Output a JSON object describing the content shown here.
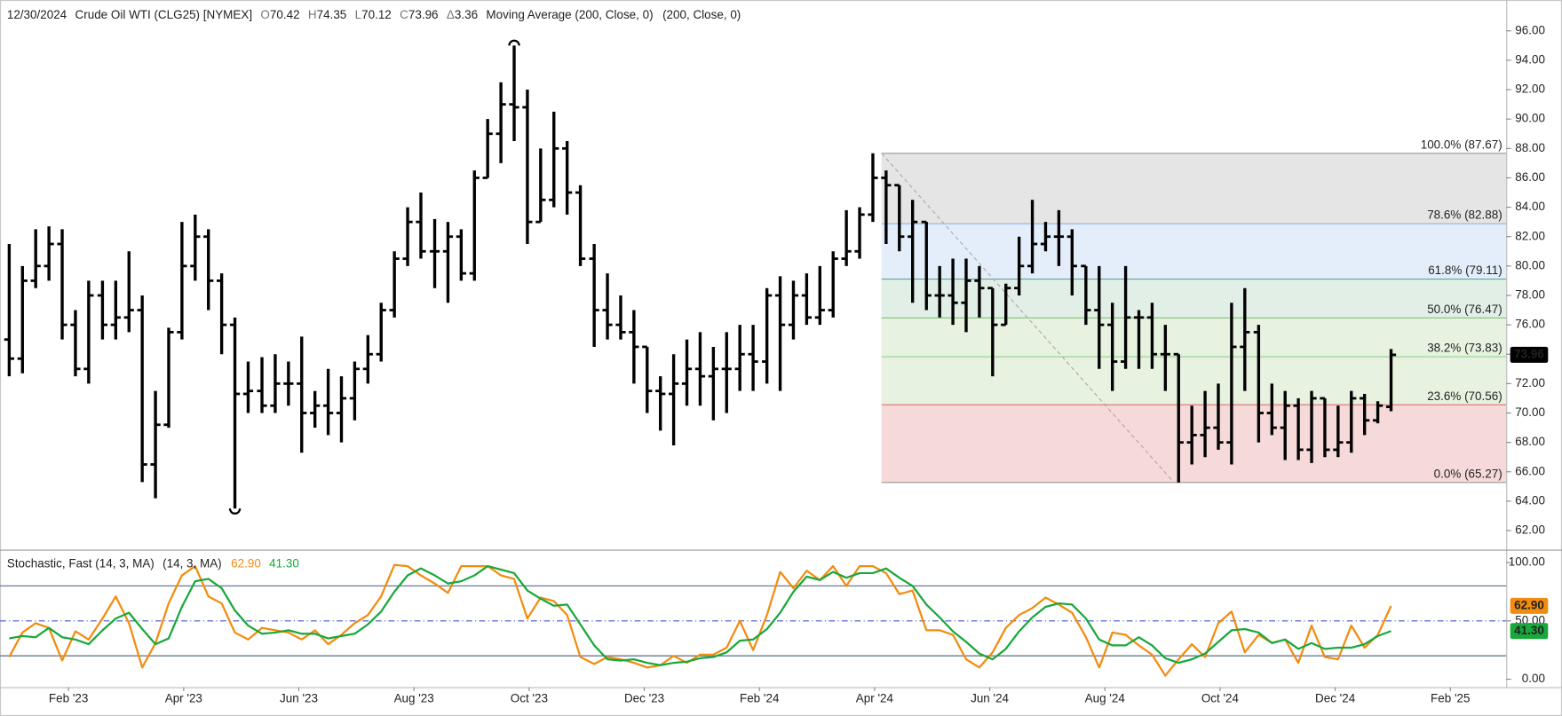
{
  "chart_data": {
    "type": "ohlc",
    "date": "12/30/2024",
    "title": "Crude Oil WTI (CLG25) [NYMEX]",
    "legend_letters": {
      "open": "O",
      "high": "H",
      "low": "L",
      "close": "C",
      "change": "Δ"
    },
    "change": 3.36,
    "study": "Moving Average (200, Close, 0)",
    "study_params": "(200, Close, 0)",
    "color": "#000000",
    "x": [
      -0.03,
      0.2,
      0.43,
      0.66,
      0.89,
      1.12,
      1.35,
      1.59,
      1.82,
      2.05,
      2.28,
      2.51,
      2.74,
      2.97,
      3.2,
      3.43,
      3.66,
      3.89,
      4.12,
      4.36,
      4.59,
      4.82,
      5.05,
      5.28,
      5.51,
      5.74,
      5.97,
      6.2,
      6.43,
      6.66,
      6.89,
      7.12,
      7.36,
      7.59,
      7.82,
      8.05,
      8.28,
      8.51,
      8.74,
      8.97,
      9.2,
      9.43,
      9.66,
      9.89,
      10.13,
      10.36,
      10.59,
      10.82,
      11.05,
      11.28,
      11.51,
      11.74,
      11.97,
      12.2,
      12.43,
      12.66,
      12.89,
      13.13,
      13.36,
      13.59,
      13.82,
      14.05,
      14.28,
      14.51,
      14.74,
      14.97,
      15.2,
      15.43,
      15.66,
      15.9,
      16.13,
      16.36,
      16.59,
      16.82,
      17.05,
      17.28,
      17.51,
      17.74,
      17.97,
      18.2,
      18.43,
      18.67,
      18.9,
      19.13,
      19.36,
      19.59,
      19.82,
      20.05,
      20.28,
      20.51,
      20.74,
      20.97,
      21.2,
      21.43,
      21.67,
      21.9,
      22.13,
      22.36,
      22.59,
      22.82,
      23.05,
      23.28,
      23.51,
      23.74,
      23.97
    ],
    "open": [
      75,
      73.7,
      79,
      80,
      81.5,
      76,
      73,
      78,
      76,
      76.5,
      77,
      66.5,
      69.2,
      75.5,
      80,
      82,
      79,
      76,
      71.3,
      71.5,
      70.5,
      72,
      72,
      70,
      70.5,
      70,
      71,
      73,
      74,
      77,
      80.5,
      83,
      81,
      81,
      82,
      79.5,
      86,
      89,
      91,
      90.8,
      83,
      84.5,
      88,
      85,
      80.5,
      77,
      76,
      75.5,
      74.5,
      71.5,
      71.3,
      72,
      73,
      72.5,
      73,
      73,
      74,
      73.5,
      78,
      76,
      78,
      76.5,
      77,
      80.5,
      81,
      83.5,
      86,
      85.5,
      82,
      83,
      78,
      78,
      77.5,
      79,
      78.5,
      76,
      78.5,
      80,
      81.5,
      82,
      82,
      80,
      77,
      76,
      73.5,
      76.5,
      76.5,
      74,
      74,
      68,
      68.5,
      69,
      68,
      74.5,
      75.5,
      70,
      69,
      70.5,
      67.5,
      71,
      67.5,
      68,
      71,
      69.5,
      70.42
    ],
    "high": [
      81.5,
      80,
      82.5,
      82.7,
      82.5,
      77,
      79,
      79,
      79,
      81,
      78,
      71.5,
      75.8,
      83,
      83.5,
      82.5,
      79.5,
      76.5,
      73.5,
      73.8,
      74,
      73.5,
      75.2,
      71.5,
      73,
      72.5,
      73.5,
      75.3,
      77.5,
      81,
      84,
      85,
      83.2,
      83,
      82.5,
      86.5,
      90,
      92.5,
      95,
      92,
      88,
      90.5,
      88.5,
      85.5,
      81.5,
      79.5,
      78,
      77,
      74.5,
      72.5,
      74,
      75,
      75.5,
      74.5,
      75.5,
      76,
      76,
      78.5,
      79.3,
      79,
      79.5,
      80,
      81,
      83.8,
      84,
      87.67,
      86.5,
      85.5,
      84.5,
      83,
      80,
      80.5,
      80.5,
      80,
      78.5,
      78.8,
      82,
      84.5,
      83,
      83.8,
      82.5,
      80,
      80,
      77.5,
      80,
      77,
      77.5,
      76,
      74,
      70.5,
      71.5,
      72,
      77.5,
      78.5,
      76,
      72,
      71.5,
      71,
      71.5,
      71,
      70.5,
      71.5,
      71.3,
      70.8,
      74.35
    ],
    "low": [
      72.5,
      72.7,
      78.5,
      79,
      75,
      72.5,
      72,
      75,
      75,
      75.5,
      65.3,
      64.2,
      69,
      75,
      79,
      77,
      74,
      63.5,
      70,
      70,
      70,
      70.5,
      67.3,
      69,
      68.5,
      68,
      69.5,
      72,
      73.5,
      76.5,
      80,
      80.5,
      78.5,
      77.5,
      79,
      79,
      86,
      87,
      88.5,
      81.5,
      83,
      84,
      83.5,
      80,
      74.5,
      75,
      75,
      72,
      70,
      68.8,
      67.8,
      70.5,
      70.5,
      69.5,
      70,
      71.5,
      71.5,
      72,
      71.5,
      75,
      76,
      76,
      76.5,
      80,
      80.5,
      83,
      81.5,
      81,
      77.5,
      77,
      76.5,
      76,
      75.5,
      76.5,
      72.5,
      76,
      78,
      79.5,
      81,
      80,
      78,
      76,
      73,
      71.5,
      73,
      73,
      73,
      71.5,
      65.27,
      66.5,
      67,
      67.5,
      66.5,
      71.5,
      68,
      68.5,
      66.8,
      66.8,
      66.6,
      67,
      67,
      67.3,
      68.5,
      69.3,
      70.12
    ],
    "close": [
      73.7,
      79,
      80,
      81.5,
      76,
      73,
      78,
      76,
      76.5,
      77,
      66.5,
      69.2,
      75.5,
      80,
      82,
      79,
      76,
      71.3,
      71.5,
      70.5,
      72,
      72,
      70,
      70.5,
      70,
      71,
      73,
      74,
      77,
      80.5,
      83,
      81,
      81,
      82,
      79.5,
      86,
      89,
      91,
      90.8,
      83,
      84.5,
      88,
      85,
      80.5,
      77,
      76,
      75.5,
      74.5,
      71.5,
      71.3,
      72,
      73,
      72.5,
      73,
      73,
      74,
      73.5,
      78,
      76,
      78,
      76.5,
      77,
      80.5,
      81,
      83.5,
      86,
      85.5,
      82,
      83,
      78,
      78,
      77.5,
      79,
      78.5,
      76,
      78.5,
      80,
      81.5,
      82,
      82,
      80,
      77,
      76,
      73.5,
      76.5,
      76.5,
      74,
      74,
      68,
      68.5,
      69,
      68,
      74.5,
      75.5,
      70,
      69,
      70.5,
      67.5,
      71,
      67.5,
      68,
      71,
      69.5,
      70.5,
      73.96
    ],
    "xlim": [
      -0.19,
      25.97
    ],
    "xticks": [
      {
        "value": 1,
        "label": "Feb '23"
      },
      {
        "value": 3,
        "label": "Apr '23"
      },
      {
        "value": 5,
        "label": "Jun '23"
      },
      {
        "value": 7,
        "label": "Aug '23"
      },
      {
        "value": 9,
        "label": "Oct '23"
      },
      {
        "value": 11,
        "label": "Dec '23"
      },
      {
        "value": 13,
        "label": "Feb '24"
      },
      {
        "value": 15,
        "label": "Apr '24"
      },
      {
        "value": 17,
        "label": "Jun '24"
      },
      {
        "value": 19,
        "label": "Aug '24"
      },
      {
        "value": 21,
        "label": "Oct '24"
      },
      {
        "value": 23,
        "label": "Dec '24"
      },
      {
        "value": 25,
        "label": "Feb '25"
      }
    ],
    "ylim": [
      60.7,
      98.1
    ],
    "yticks": [
      {
        "value": 62,
        "label": "62.00"
      },
      {
        "value": 64,
        "label": "64.00"
      },
      {
        "value": 66,
        "label": "66.00"
      },
      {
        "value": 68,
        "label": "68.00"
      },
      {
        "value": 70,
        "label": "70.00"
      },
      {
        "value": 72,
        "label": "72.00"
      },
      {
        "value": 74,
        "label": "74.00"
      },
      {
        "value": 76,
        "label": "76.00"
      },
      {
        "value": 78,
        "label": "78.00"
      },
      {
        "value": 80,
        "label": "80.00"
      },
      {
        "value": 82,
        "label": "82.00"
      },
      {
        "value": 84,
        "label": "84.00"
      },
      {
        "value": 86,
        "label": "86.00"
      },
      {
        "value": 88,
        "label": "88.00"
      },
      {
        "value": 90,
        "label": "90.00"
      },
      {
        "value": 92,
        "label": "92.00"
      },
      {
        "value": 94,
        "label": "94.00"
      },
      {
        "value": 96,
        "label": "96.00"
      }
    ],
    "fib": {
      "start_x": 15.12,
      "end_x": 20.2,
      "levels": [
        {
          "value": 87.67,
          "label": "100.0% (87.67)",
          "color": "#9a9a9a",
          "text_color": "#8a8a8a"
        },
        {
          "value": 82.88,
          "label": "78.6% (82.88)",
          "color": "#8ab4e8",
          "text_color": "#6a9fd8"
        },
        {
          "value": 79.11,
          "label": "61.8% (79.11)",
          "color": "#5aa5a0",
          "text_color": "#4a9a90"
        },
        {
          "value": 76.47,
          "label": "50.0% (76.47)",
          "color": "#7cc27c",
          "text_color": "#5aa05a"
        },
        {
          "value": 73.83,
          "label": "38.2% (73.83)",
          "color": "#9ad08f",
          "text_color": "#7cbf6c"
        },
        {
          "value": 70.56,
          "label": "23.6% (70.56)",
          "color": "#e07070",
          "text_color": "#c85050"
        },
        {
          "value": 65.27,
          "label": "0.0% (65.27)",
          "color": "#9a9a9a",
          "text_color": "#8a8a8a"
        }
      ],
      "zone_colors": [
        "#e5e5e5",
        "#e4eefa",
        "#e2efe6",
        "#e7f2e0",
        "#e7f2e0",
        "#f6d9d9"
      ]
    },
    "stochastic": {
      "type": "line",
      "title": "Stochastic, Fast (14, 3, MA)",
      "params": "(14, 3, MA)",
      "ylim": [
        -6.8,
        110.2
      ],
      "yticks": [
        {
          "value": 0,
          "label": "0.00"
        },
        {
          "value": 50,
          "label": "50.00"
        },
        {
          "value": 100,
          "label": "100.00"
        }
      ],
      "levels": [
        80,
        50,
        20
      ],
      "series": [
        {
          "color": "#f28c0f",
          "values": [
            19,
            40,
            48,
            44,
            16,
            41,
            34,
            52,
            71,
            48,
            10,
            31,
            65,
            89,
            97,
            71,
            65,
            40,
            34,
            44,
            42,
            40,
            34,
            42,
            30,
            38,
            48,
            55,
            71,
            98,
            97,
            89,
            82,
            74,
            97,
            97,
            97,
            89,
            86,
            52,
            70,
            67,
            55,
            19,
            13,
            19,
            17,
            14,
            10,
            12,
            20,
            14,
            21,
            21,
            27,
            50,
            25,
            55,
            92,
            78,
            93,
            85,
            97,
            80,
            97,
            97,
            91,
            73,
            76,
            42,
            42,
            38,
            17,
            10,
            23,
            44,
            55,
            61,
            70,
            64,
            57,
            36,
            10,
            40,
            38,
            29,
            21,
            3,
            17,
            30,
            19,
            48,
            58,
            23,
            38,
            31,
            34,
            14,
            46,
            19,
            17,
            46,
            27,
            38,
            62.9
          ],
          "value_labels": {
            "104": "62.90"
          }
        },
        {
          "color": "#19a83b",
          "values": [
            35,
            37,
            36,
            44,
            36,
            34,
            30,
            42,
            52,
            57,
            43,
            30,
            35,
            62,
            84,
            86,
            78,
            59,
            46,
            39,
            40,
            42,
            39,
            39,
            35,
            37,
            39,
            47,
            58,
            75,
            89,
            95,
            89,
            82,
            84,
            89,
            97,
            94,
            91,
            76,
            69,
            63,
            64,
            47,
            29,
            17,
            16,
            17,
            14,
            12,
            14,
            15,
            18,
            19,
            23,
            33,
            34,
            43,
            57,
            75,
            88,
            85,
            92,
            87,
            91,
            91,
            95,
            87,
            80,
            64,
            53,
            41,
            32,
            22,
            17,
            26,
            41,
            53,
            62,
            65,
            64,
            52,
            34,
            29,
            29,
            36,
            29,
            18,
            14,
            17,
            22,
            32,
            42,
            43,
            40,
            31,
            34,
            26,
            31,
            26,
            27,
            27,
            30,
            37,
            41.3
          ],
          "value_labels": {
            "104": "41.30"
          }
        }
      ]
    }
  }
}
